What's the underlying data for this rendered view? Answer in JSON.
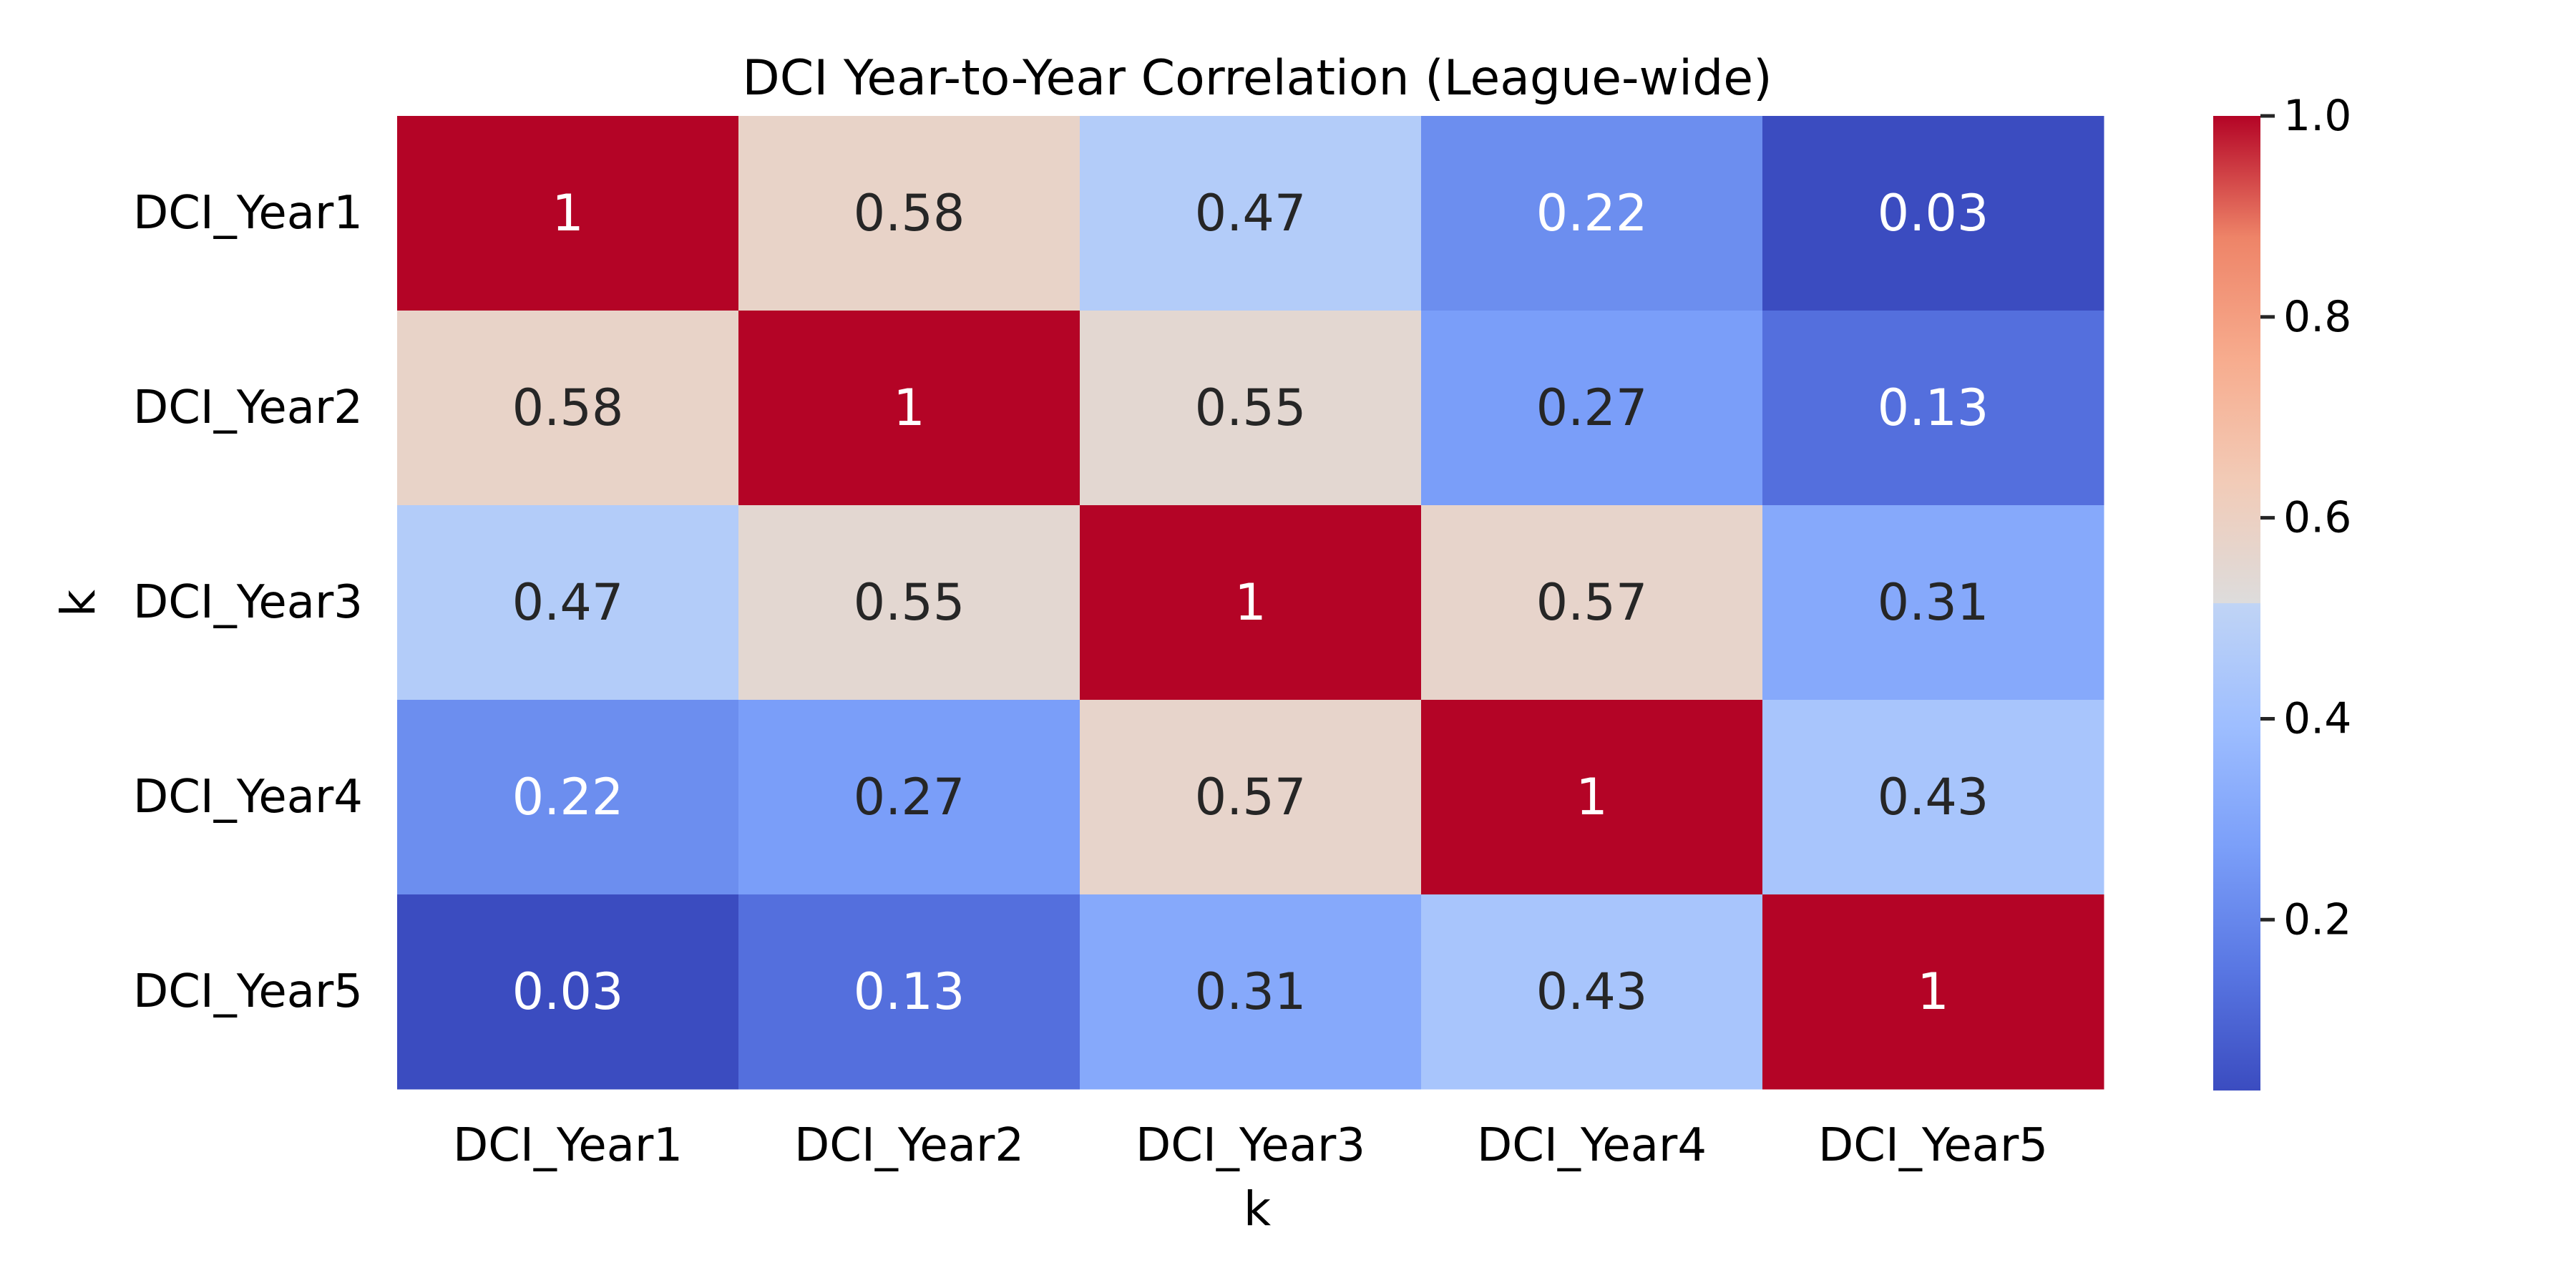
{
  "chart_data": {
    "type": "heatmap",
    "title": "DCI Year-to-Year Correlation (League-wide)",
    "xlabel": "k",
    "ylabel": "k",
    "x_categories": [
      "DCI_Year1",
      "DCI_Year2",
      "DCI_Year3",
      "DCI_Year4",
      "DCI_Year5"
    ],
    "y_categories": [
      "DCI_Year1",
      "DCI_Year2",
      "DCI_Year3",
      "DCI_Year4",
      "DCI_Year5"
    ],
    "values": [
      [
        1,
        0.58,
        0.47,
        0.22,
        0.03
      ],
      [
        0.58,
        1,
        0.55,
        0.27,
        0.13
      ],
      [
        0.47,
        0.55,
        1,
        0.57,
        0.31
      ],
      [
        0.22,
        0.27,
        0.57,
        1,
        0.43
      ],
      [
        0.03,
        0.13,
        0.31,
        0.43,
        1
      ]
    ],
    "colormap": "coolwarm",
    "vmin": 0.03,
    "vmax": 1.0,
    "colorbar": {
      "ticks": [
        0.2,
        0.4,
        0.6,
        0.8,
        1.0
      ],
      "tick_labels": [
        "0.2",
        "0.4",
        "0.6",
        "0.8",
        "1.0"
      ]
    },
    "grid": false
  }
}
